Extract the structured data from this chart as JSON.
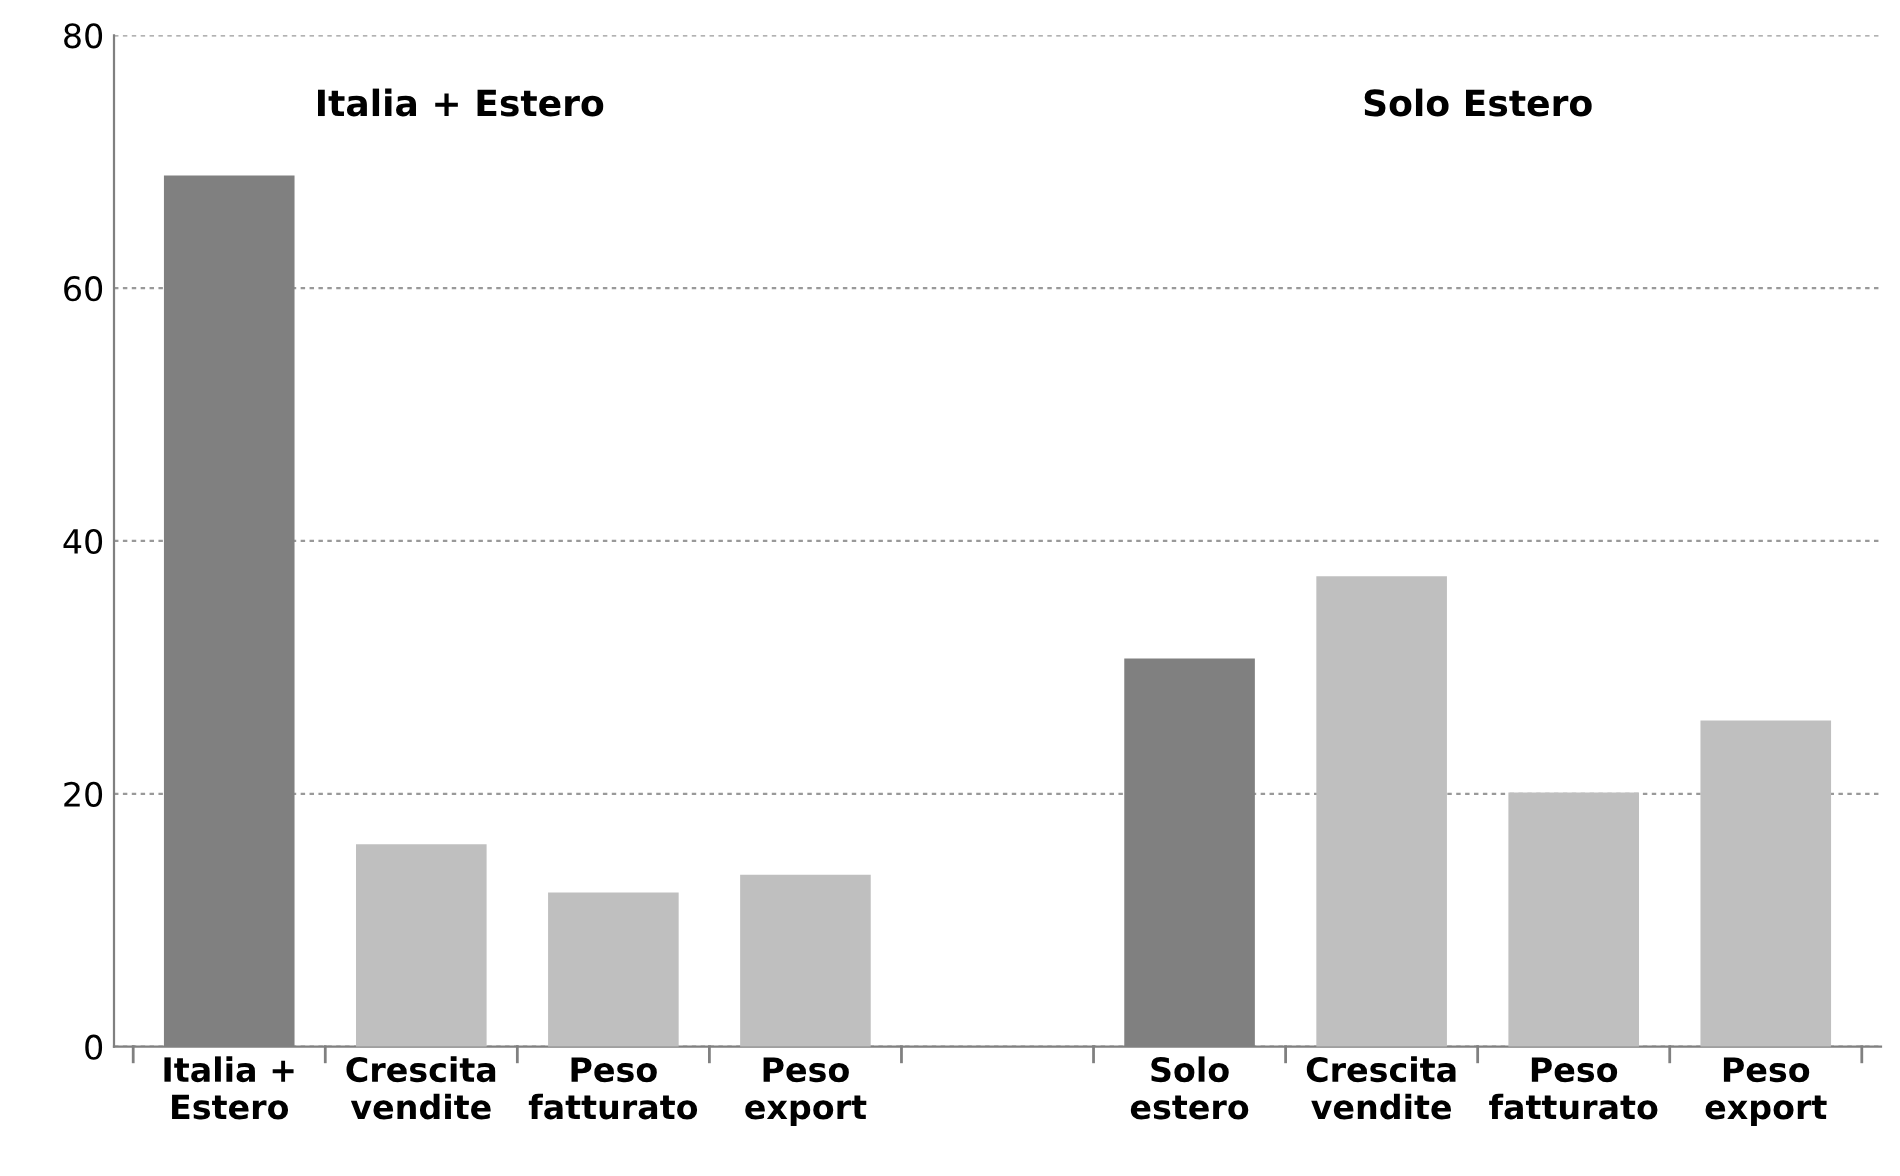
{
  "chart_data": {
    "type": "bar",
    "categories": [
      "Italia +\nEstero",
      "Crescita\nvendite",
      "Peso\nfatturato",
      "Peso\nexport",
      null,
      "Solo\nestero",
      "Crescita\nvendite",
      "Peso\nfatturato",
      "Peso\nexport"
    ],
    "values": [
      68.9,
      16.0,
      12.2,
      13.6,
      null,
      30.7,
      37.2,
      20.1,
      25.8
    ],
    "colors": [
      "#808080",
      "#bfbfbf",
      "#bfbfbf",
      "#bfbfbf",
      "#bfbfbf",
      "#808080",
      "#bfbfbf",
      "#bfbfbf",
      "#bfbfbf"
    ],
    "ylim": [
      0,
      80
    ],
    "yticks": [
      0,
      20,
      40,
      60,
      80
    ],
    "grid": "y",
    "annotations": [
      "Italia + Estero",
      "Solo Estero"
    ]
  }
}
